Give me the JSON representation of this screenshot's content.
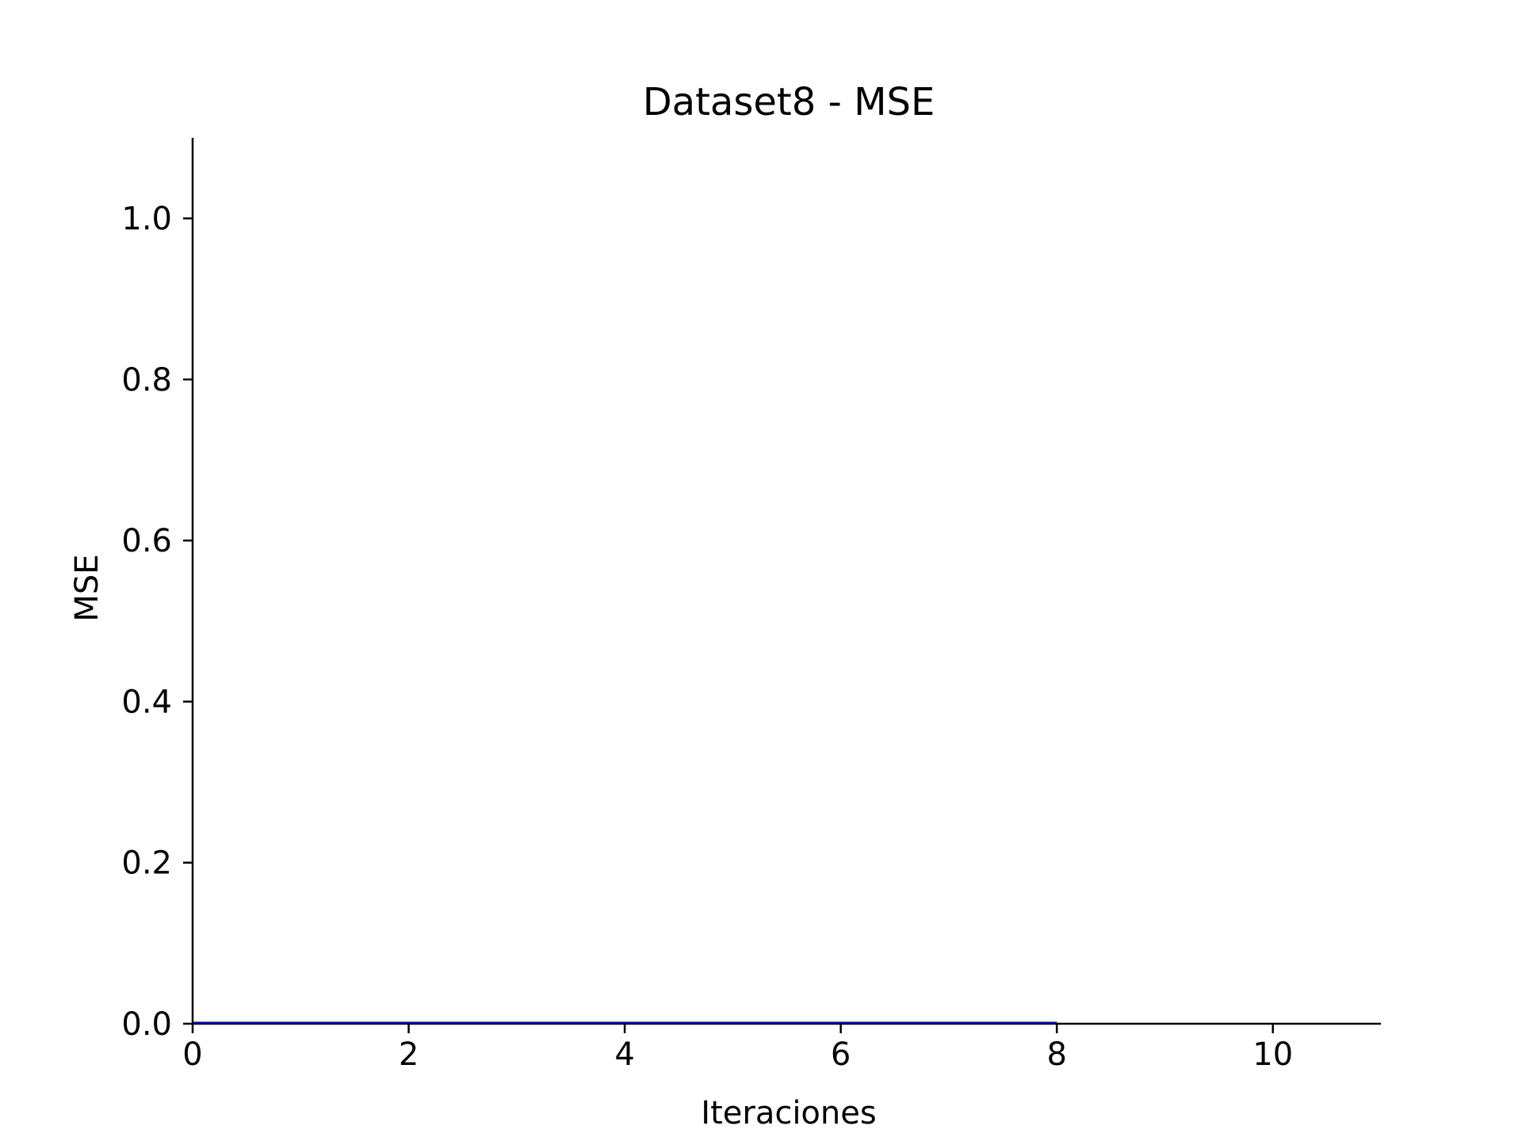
{
  "chart_data": {
    "type": "line",
    "title": "Dataset8 - MSE",
    "xlabel": "Iteraciones",
    "ylabel": "MSE",
    "xlim": [
      0,
      11
    ],
    "ylim": [
      0,
      1.1
    ],
    "xticks": [
      0,
      2,
      4,
      6,
      8,
      10
    ],
    "yticks": [
      0.0,
      0.2,
      0.4,
      0.6,
      0.8,
      1.0
    ],
    "xtick_labels": [
      "0",
      "2",
      "4",
      "6",
      "8",
      "10"
    ],
    "ytick_labels": [
      "0.0",
      "0.2",
      "0.4",
      "0.6",
      "0.8",
      "1.0"
    ],
    "grid": false,
    "series": [
      {
        "color": "#0000ff",
        "x": [
          0,
          1,
          2,
          3,
          4,
          5,
          6,
          7,
          8
        ],
        "values": [
          0.001,
          0.001,
          0.001,
          0.001,
          0.001,
          0.001,
          0.001,
          0.001,
          0.001
        ]
      }
    ]
  }
}
